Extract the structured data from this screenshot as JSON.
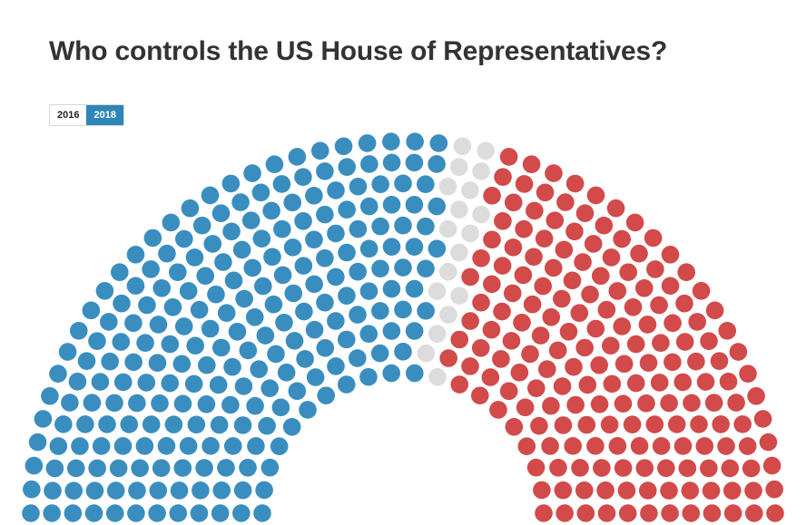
{
  "title": "Who controls the US House of Representatives?",
  "year_toggle": {
    "options": [
      "2016",
      "2018"
    ],
    "selected": "2018"
  },
  "colors": {
    "democrat": "#3a8ebf",
    "vacant": "#dcdcdc",
    "republican": "#d24a4a",
    "toggle_active": "#2e86b8"
  },
  "chart_data": {
    "type": "parliament",
    "total_seats": 435,
    "series": [
      {
        "key": "democrat",
        "seats": 235
      },
      {
        "key": "vacant",
        "seats": 18
      },
      {
        "key": "republican",
        "seats": 182
      }
    ]
  }
}
